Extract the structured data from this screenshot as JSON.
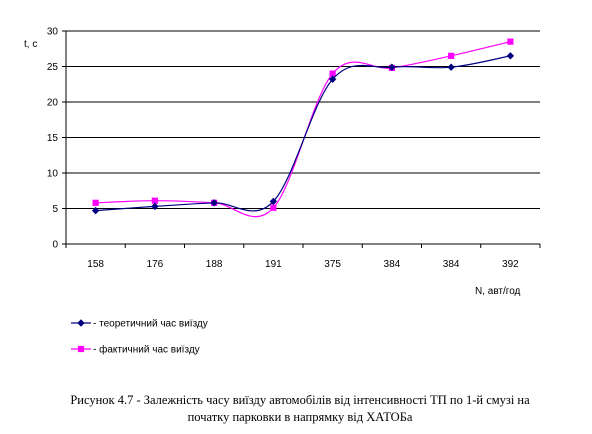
{
  "chart_data": {
    "type": "line",
    "ylabel": "t, с",
    "xlabel": "N, авт/год",
    "categories": [
      "158",
      "176",
      "188",
      "191",
      "375",
      "384",
      "384",
      "392"
    ],
    "ylim": [
      0,
      30
    ],
    "yticks": [
      0,
      5,
      10,
      15,
      20,
      25,
      30
    ],
    "grid": "horizontal",
    "legend_position": "bottom-left",
    "series": [
      {
        "name": "- теоретичний час виїзду",
        "color": "#000080",
        "marker": "diamond",
        "values": [
          4.7,
          5.3,
          5.8,
          6.0,
          23.2,
          24.9,
          24.9,
          26.5
        ]
      },
      {
        "name": "- фактичний час виїзду",
        "color": "#ff00ff",
        "marker": "square",
        "values": [
          5.8,
          6.1,
          5.8,
          5.1,
          24.0,
          24.8,
          26.5,
          28.5
        ]
      }
    ]
  },
  "caption": {
    "line1": "Рисунок 4.7 - Залежність часу виїзду автомобілів від інтенсивності ТП по 1-й смузі на",
    "line2": "початку парковки в напрямку від ХАТОБа"
  }
}
